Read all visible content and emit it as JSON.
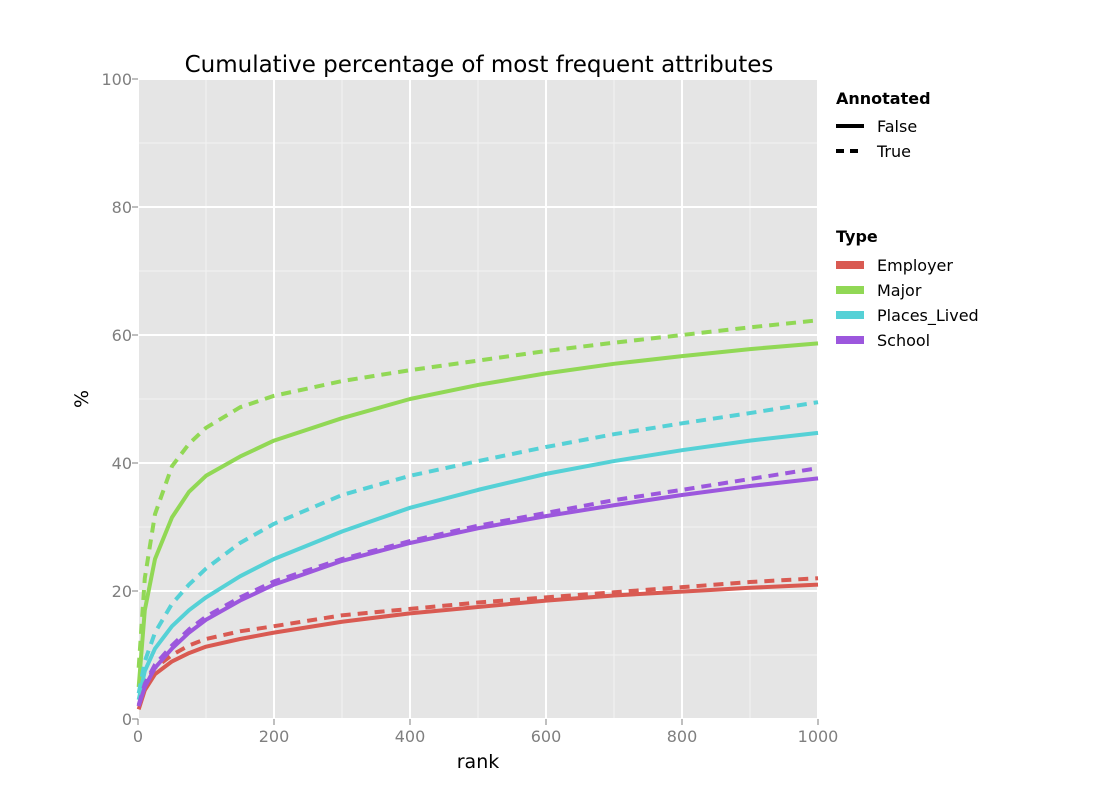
{
  "chart_data": {
    "type": "line",
    "title": "Cumulative percentage of most frequent attributes",
    "xlabel": "rank",
    "ylabel": "%",
    "xlim": [
      0,
      1000
    ],
    "ylim": [
      0,
      100
    ],
    "x_ticks": [
      "0",
      "200",
      "400",
      "600",
      "800",
      "1000"
    ],
    "y_ticks": [
      "0",
      "20",
      "40",
      "60",
      "80",
      "100"
    ],
    "grid": true,
    "legend_placement": "right",
    "legends": {
      "annotated": {
        "title": "Annotated",
        "entries": [
          {
            "label": "False",
            "style": "solid"
          },
          {
            "label": "True",
            "style": "dashed"
          }
        ]
      },
      "type": {
        "title": "Type",
        "entries": [
          {
            "label": "Employer",
            "color": "#d95a52"
          },
          {
            "label": "Major",
            "color": "#91d855"
          },
          {
            "label": "Places_Lived",
            "color": "#55d1d6"
          },
          {
            "label": "School",
            "color": "#9c57dd"
          }
        ]
      }
    },
    "series": [
      {
        "type": "Employer",
        "annotated": "False",
        "color": "#d95a52",
        "style": "solid",
        "x": [
          1,
          10,
          25,
          50,
          75,
          100,
          150,
          200,
          300,
          400,
          500,
          600,
          700,
          800,
          900,
          1000
        ],
        "y": [
          1.5,
          4.5,
          7.0,
          9.0,
          10.3,
          11.3,
          12.5,
          13.5,
          15.2,
          16.5,
          17.5,
          18.5,
          19.3,
          19.9,
          20.5,
          21.0
        ]
      },
      {
        "type": "Employer",
        "annotated": "True",
        "color": "#d95a52",
        "style": "dashed",
        "x": [
          1,
          10,
          25,
          50,
          75,
          100,
          150,
          200,
          300,
          400,
          500,
          600,
          700,
          800,
          900,
          1000
        ],
        "y": [
          2.0,
          5.5,
          8.0,
          10.0,
          11.5,
          12.5,
          13.7,
          14.5,
          16.2,
          17.2,
          18.2,
          19.0,
          19.8,
          20.6,
          21.4,
          22.0
        ]
      },
      {
        "type": "Major",
        "annotated": "False",
        "color": "#91d855",
        "style": "solid",
        "x": [
          1,
          10,
          25,
          50,
          75,
          100,
          150,
          200,
          300,
          400,
          500,
          600,
          700,
          800,
          900,
          1000
        ],
        "y": [
          5.0,
          17.0,
          25.0,
          31.5,
          35.5,
          38.0,
          41.0,
          43.5,
          47.0,
          50.0,
          52.2,
          54.0,
          55.5,
          56.7,
          57.8,
          58.7
        ]
      },
      {
        "type": "Major",
        "annotated": "True",
        "color": "#91d855",
        "style": "dashed",
        "x": [
          1,
          10,
          25,
          50,
          75,
          100,
          150,
          200,
          300,
          400,
          500,
          600,
          700,
          800,
          900,
          1000
        ],
        "y": [
          8.0,
          22.0,
          32.0,
          39.5,
          43.0,
          45.5,
          48.7,
          50.5,
          52.8,
          54.5,
          56.0,
          57.5,
          58.8,
          60.0,
          61.2,
          62.3
        ]
      },
      {
        "type": "Places_Lived",
        "annotated": "False",
        "color": "#55d1d6",
        "style": "solid",
        "x": [
          1,
          10,
          25,
          50,
          75,
          100,
          150,
          200,
          300,
          400,
          500,
          600,
          700,
          800,
          900,
          1000
        ],
        "y": [
          3.0,
          7.5,
          11.0,
          14.5,
          17.0,
          19.0,
          22.3,
          25.0,
          29.3,
          33.0,
          35.8,
          38.3,
          40.3,
          42.0,
          43.5,
          44.7
        ]
      },
      {
        "type": "Places_Lived",
        "annotated": "True",
        "color": "#55d1d6",
        "style": "dashed",
        "x": [
          1,
          10,
          25,
          50,
          75,
          100,
          150,
          200,
          300,
          400,
          500,
          600,
          700,
          800,
          900,
          1000
        ],
        "y": [
          4.0,
          9.0,
          13.5,
          18.0,
          21.0,
          23.5,
          27.5,
          30.5,
          35.0,
          38.0,
          40.3,
          42.5,
          44.5,
          46.2,
          47.8,
          49.5
        ]
      },
      {
        "type": "School",
        "annotated": "False",
        "color": "#9c57dd",
        "style": "solid",
        "x": [
          1,
          10,
          25,
          50,
          75,
          100,
          150,
          200,
          300,
          400,
          500,
          600,
          700,
          800,
          900,
          1000
        ],
        "y": [
          2.0,
          5.0,
          8.0,
          11.0,
          13.5,
          15.5,
          18.5,
          21.0,
          24.7,
          27.5,
          29.8,
          31.7,
          33.4,
          35.0,
          36.4,
          37.6
        ]
      },
      {
        "type": "School",
        "annotated": "True",
        "color": "#9c57dd",
        "style": "dashed",
        "x": [
          1,
          10,
          25,
          50,
          75,
          100,
          150,
          200,
          300,
          400,
          500,
          600,
          700,
          800,
          900,
          1000
        ],
        "y": [
          2.2,
          5.5,
          8.5,
          11.5,
          14.0,
          16.0,
          19.0,
          21.5,
          25.0,
          27.8,
          30.2,
          32.2,
          34.2,
          35.8,
          37.5,
          39.2
        ]
      }
    ]
  }
}
